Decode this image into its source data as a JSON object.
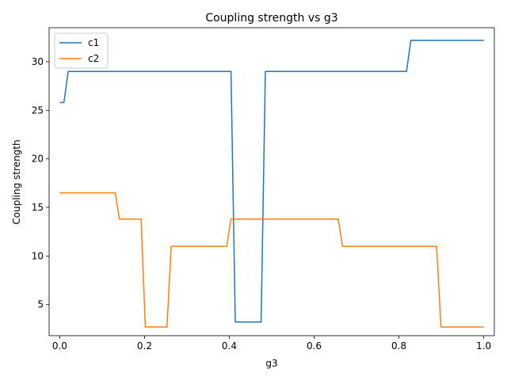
{
  "chart_data": {
    "type": "line",
    "title": "Coupling strength vs g3",
    "xlabel": "g3",
    "ylabel": "Coupling strength",
    "xlim": [
      -0.025,
      1.025
    ],
    "ylim": [
      1.8,
      33.5
    ],
    "xticks": [
      0.0,
      0.2,
      0.4,
      0.6,
      0.8,
      1.0
    ],
    "xtick_labels": [
      "0.0",
      "0.2",
      "0.4",
      "0.6",
      "0.8",
      "1.0"
    ],
    "yticks": [
      5,
      10,
      15,
      20,
      25,
      30
    ],
    "ytick_labels": [
      "5",
      "10",
      "15",
      "20",
      "25",
      "30"
    ],
    "grid": false,
    "legend_position": "top-left",
    "series": [
      {
        "name": "c1",
        "color": "#1f77b4",
        "x": [
          0.0,
          0.01,
          0.02,
          0.404,
          0.414,
          0.475,
          0.485,
          0.818,
          0.828,
          1.0
        ],
        "y": [
          25.8,
          25.8,
          29.0,
          29.0,
          3.2,
          3.2,
          29.0,
          29.0,
          32.2,
          32.2
        ]
      },
      {
        "name": "c2",
        "color": "#ff7f0e",
        "x": [
          0.0,
          0.131,
          0.141,
          0.192,
          0.202,
          0.253,
          0.263,
          0.394,
          0.404,
          0.657,
          0.667,
          0.889,
          0.899,
          1.0
        ],
        "y": [
          16.5,
          16.5,
          13.8,
          13.8,
          2.7,
          2.7,
          11.0,
          11.0,
          13.8,
          13.8,
          11.0,
          11.0,
          2.7,
          2.7
        ]
      }
    ]
  }
}
